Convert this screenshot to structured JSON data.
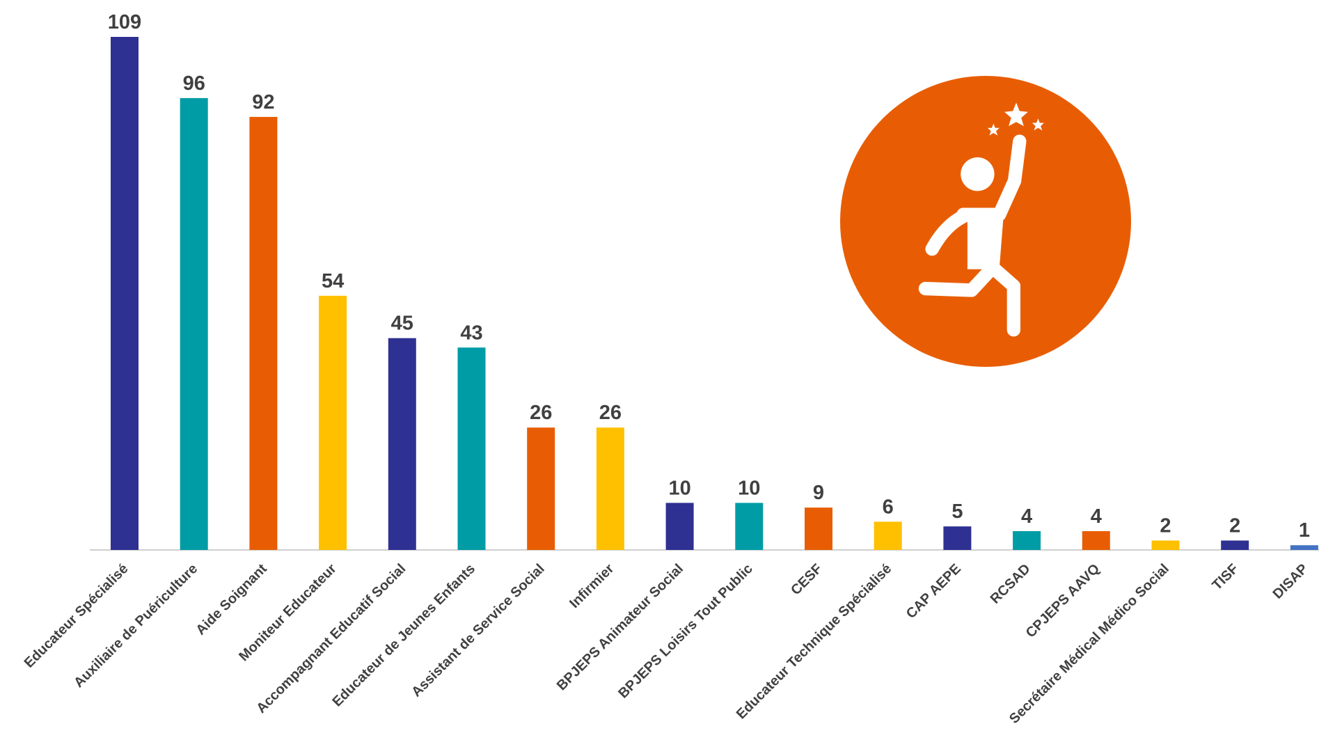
{
  "chart_data": {
    "type": "bar",
    "categories": [
      "Educateur Spécialisé",
      "Auxiliaire de Puériculture",
      "Aide Soignant",
      "Moniteur Educateur",
      "Accompagnant Educatif Social",
      "Educateur de Jeunes Enfants",
      "Assistant de Service Social",
      "Infirmier",
      "BPJEPS Animateur Social",
      "BPJEPS Loisirs Tout Public",
      "CESF",
      "Educateur Technique Spécialisé",
      "CAP AEPE",
      "RCSAD",
      "CPJEPS AAVQ",
      "Secrétaire Médical Médico Social",
      "TISF",
      "DISAP"
    ],
    "values": [
      109,
      96,
      92,
      54,
      45,
      43,
      26,
      26,
      10,
      10,
      9,
      6,
      5,
      4,
      4,
      2,
      2,
      1
    ],
    "colors": [
      "#2e3192",
      "#009ca6",
      "#e85d04",
      "#ffc000",
      "#2e3192",
      "#009ca6",
      "#e85d04",
      "#ffc000",
      "#2e3192",
      "#009ca6",
      "#e85d04",
      "#ffc000",
      "#2e3192",
      "#009ca6",
      "#e85d04",
      "#ffc000",
      "#2e3192",
      "#4472c4"
    ]
  }
}
